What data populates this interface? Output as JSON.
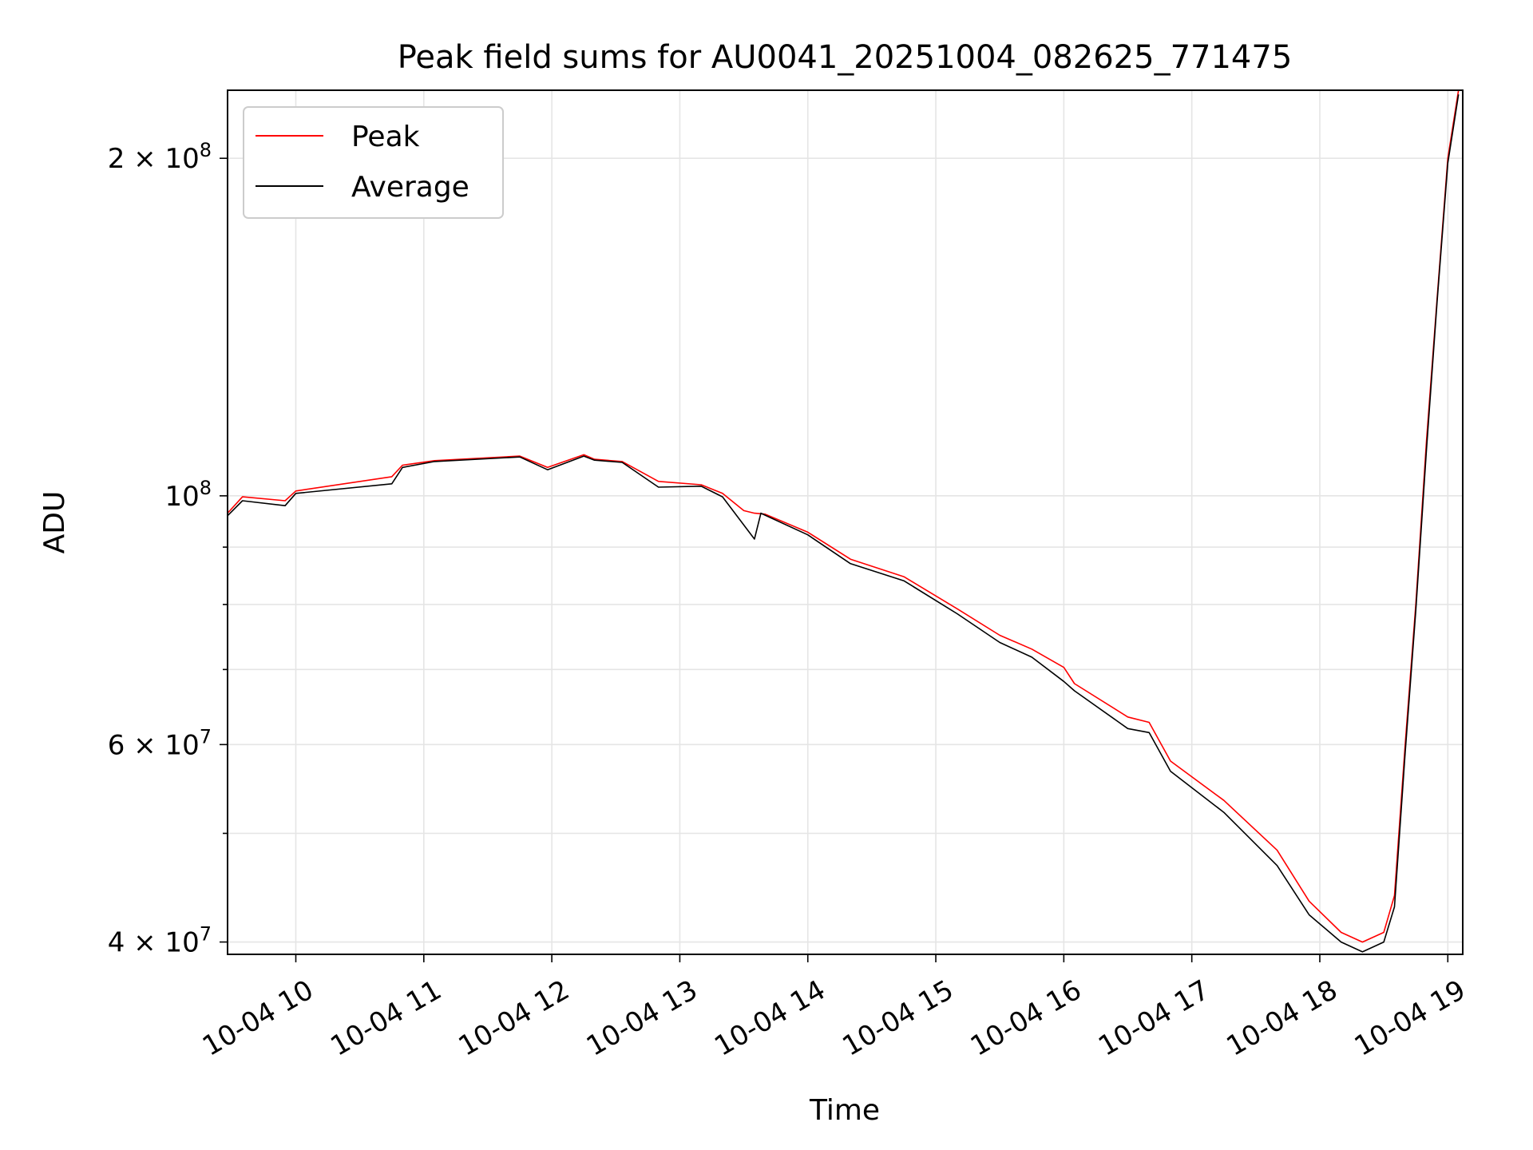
{
  "chart_data": {
    "type": "line",
    "title": "Peak field sums for AU0041_20251004_082625_771475",
    "xlabel": "Time",
    "ylabel": "ADU",
    "x_scale": "time",
    "y_scale": "log",
    "xlim": [
      "2025-10-04 09:28",
      "2025-10-04 19:07"
    ],
    "ylim": [
      39000000,
      230000000
    ],
    "grid": true,
    "legend_position": "upper-left",
    "x_ticks": [
      {
        "value": "2025-10-04 10:00",
        "label": "10-04 10"
      },
      {
        "value": "2025-10-04 11:00",
        "label": "10-04 11"
      },
      {
        "value": "2025-10-04 12:00",
        "label": "10-04 12"
      },
      {
        "value": "2025-10-04 13:00",
        "label": "10-04 13"
      },
      {
        "value": "2025-10-04 14:00",
        "label": "10-04 14"
      },
      {
        "value": "2025-10-04 15:00",
        "label": "10-04 15"
      },
      {
        "value": "2025-10-04 16:00",
        "label": "10-04 16"
      },
      {
        "value": "2025-10-04 17:00",
        "label": "10-04 17"
      },
      {
        "value": "2025-10-04 18:00",
        "label": "10-04 18"
      },
      {
        "value": "2025-10-04 19:00",
        "label": "10-04 19"
      }
    ],
    "y_major_ticks": [
      {
        "value": 40000000,
        "coef": "4",
        "exp": "7"
      },
      {
        "value": 60000000,
        "coef": "6",
        "exp": "7"
      },
      {
        "value": 100000000,
        "coef": "",
        "exp": "8"
      },
      {
        "value": 200000000,
        "coef": "2",
        "exp": "8"
      }
    ],
    "y_minor_ticks": [
      50000000,
      70000000,
      80000000,
      90000000
    ],
    "series": [
      {
        "name": "Peak",
        "color": "#ff0000",
        "points": [
          [
            "2025-10-04 09:28",
            96500000
          ],
          [
            "2025-10-04 09:35",
            99800000
          ],
          [
            "2025-10-04 09:55",
            99000000
          ],
          [
            "2025-10-04 10:00",
            101000000
          ],
          [
            "2025-10-04 10:45",
            104000000
          ],
          [
            "2025-10-04 10:50",
            106500000
          ],
          [
            "2025-10-04 11:05",
            107500000
          ],
          [
            "2025-10-04 11:45",
            108500000
          ],
          [
            "2025-10-04 11:58",
            106000000
          ],
          [
            "2025-10-04 12:15",
            108800000
          ],
          [
            "2025-10-04 12:20",
            107800000
          ],
          [
            "2025-10-04 12:33",
            107300000
          ],
          [
            "2025-10-04 12:50",
            103000000
          ],
          [
            "2025-10-04 13:10",
            102300000
          ],
          [
            "2025-10-04 13:20",
            100500000
          ],
          [
            "2025-10-04 13:30",
            97000000
          ],
          [
            "2025-10-04 13:35",
            96500000
          ],
          [
            "2025-10-04 13:40",
            96300000
          ],
          [
            "2025-10-04 14:00",
            92800000
          ],
          [
            "2025-10-04 14:20",
            87800000
          ],
          [
            "2025-10-04 14:45",
            84700000
          ],
          [
            "2025-10-04 15:10",
            79300000
          ],
          [
            "2025-10-04 15:30",
            75100000
          ],
          [
            "2025-10-04 15:45",
            73000000
          ],
          [
            "2025-10-04 16:00",
            70300000
          ],
          [
            "2025-10-04 16:05",
            68000000
          ],
          [
            "2025-10-04 16:30",
            63500000
          ],
          [
            "2025-10-04 16:40",
            62800000
          ],
          [
            "2025-10-04 16:50",
            58000000
          ],
          [
            "2025-10-04 17:15",
            53500000
          ],
          [
            "2025-10-04 17:40",
            48300000
          ],
          [
            "2025-10-04 17:55",
            43500000
          ],
          [
            "2025-10-04 18:10",
            40800000
          ],
          [
            "2025-10-04 18:20",
            40000000
          ],
          [
            "2025-10-04 18:30",
            40800000
          ],
          [
            "2025-10-04 18:35",
            44000000
          ],
          [
            "2025-10-04 18:40",
            60000000
          ],
          [
            "2025-10-04 18:45",
            80000000
          ],
          [
            "2025-10-04 18:50",
            112000000
          ],
          [
            "2025-10-04 18:55",
            150000000
          ],
          [
            "2025-10-04 19:00",
            200000000
          ],
          [
            "2025-10-04 19:05",
            230000000
          ]
        ]
      },
      {
        "name": "Average",
        "color": "#000000",
        "points": [
          [
            "2025-10-04 09:28",
            96000000
          ],
          [
            "2025-10-04 09:35",
            99000000
          ],
          [
            "2025-10-04 09:55",
            98000000
          ],
          [
            "2025-10-04 10:00",
            100500000
          ],
          [
            "2025-10-04 10:45",
            102500000
          ],
          [
            "2025-10-04 10:50",
            106000000
          ],
          [
            "2025-10-04 11:05",
            107300000
          ],
          [
            "2025-10-04 11:45",
            108300000
          ],
          [
            "2025-10-04 11:58",
            105500000
          ],
          [
            "2025-10-04 12:15",
            108500000
          ],
          [
            "2025-10-04 12:20",
            107600000
          ],
          [
            "2025-10-04 12:33",
            107100000
          ],
          [
            "2025-10-04 12:50",
            101800000
          ],
          [
            "2025-10-04 13:10",
            102000000
          ],
          [
            "2025-10-04 13:20",
            99800000
          ],
          [
            "2025-10-04 13:35",
            91500000
          ],
          [
            "2025-10-04 13:38",
            96500000
          ],
          [
            "2025-10-04 13:40",
            96100000
          ],
          [
            "2025-10-04 14:00",
            92300000
          ],
          [
            "2025-10-04 14:20",
            87000000
          ],
          [
            "2025-10-04 14:45",
            84000000
          ],
          [
            "2025-10-04 15:10",
            78500000
          ],
          [
            "2025-10-04 15:30",
            74000000
          ],
          [
            "2025-10-04 15:45",
            71800000
          ],
          [
            "2025-10-04 16:00",
            68300000
          ],
          [
            "2025-10-04 16:05",
            67000000
          ],
          [
            "2025-10-04 16:30",
            62000000
          ],
          [
            "2025-10-04 16:40",
            61500000
          ],
          [
            "2025-10-04 16:50",
            56800000
          ],
          [
            "2025-10-04 17:15",
            52200000
          ],
          [
            "2025-10-04 17:40",
            46800000
          ],
          [
            "2025-10-04 17:55",
            42300000
          ],
          [
            "2025-10-04 18:10",
            40000000
          ],
          [
            "2025-10-04 18:20",
            39200000
          ],
          [
            "2025-10-04 18:30",
            40000000
          ],
          [
            "2025-10-04 18:35",
            43000000
          ],
          [
            "2025-10-04 18:40",
            59000000
          ],
          [
            "2025-10-04 18:45",
            79000000
          ],
          [
            "2025-10-04 18:50",
            110000000
          ],
          [
            "2025-10-04 18:55",
            149000000
          ],
          [
            "2025-10-04 19:00",
            198000000
          ],
          [
            "2025-10-04 19:05",
            228000000
          ]
        ]
      }
    ]
  }
}
